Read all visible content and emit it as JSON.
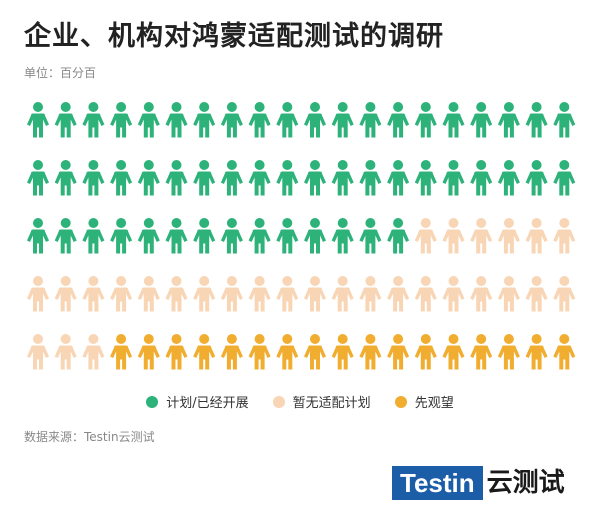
{
  "title": "企业、机构对鸿蒙适配测试的调研",
  "unit_label": "单位：百分百",
  "source_label": "数据来源：Testin云测试",
  "logo": {
    "box_text": "Testin",
    "suffix_text": "云测试"
  },
  "colors": {
    "green": "#2db27a",
    "peach": "#f8d5b5",
    "orange": "#f1ad30"
  },
  "chart_data": {
    "type": "pictogram",
    "title": "企业、机构对鸿蒙适配测试的调研",
    "unit": "单位：百分百",
    "total_icons": 100,
    "icon": "person-icon",
    "categories": [
      {
        "name": "计划/已经开展",
        "value": 54,
        "color": "#2db27a"
      },
      {
        "name": "暂无适配计划",
        "value": 29,
        "color": "#f8d5b5"
      },
      {
        "name": "先观望",
        "value": 17,
        "color": "#f1ad30"
      }
    ],
    "legend_position": "bottom"
  }
}
